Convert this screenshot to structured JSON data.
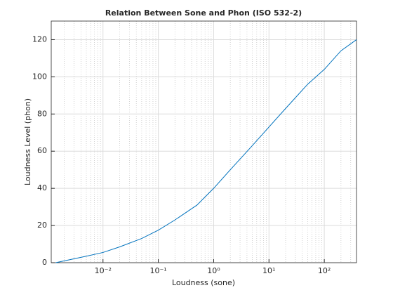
{
  "chart_data": {
    "type": "line",
    "title": "Relation Between Sone and Phon (ISO 532-2)",
    "x_label": "Loudness (sone)",
    "y_label": "Loudness Level (phon)",
    "x": [
      0.0014,
      0.002,
      0.005,
      0.01,
      0.02,
      0.05,
      0.1,
      0.2,
      0.5,
      1,
      2,
      5,
      10,
      20,
      50,
      100,
      200,
      382
    ],
    "series": [
      {
        "name": "phon",
        "color": "#0072bd",
        "values": [
          0,
          1,
          3.5,
          5.5,
          8.5,
          13,
          17.5,
          23,
          31,
          40,
          50,
          63,
          73,
          83,
          96,
          104,
          114,
          120
        ]
      }
    ],
    "xscale": "log",
    "xlim": [
      0.00116,
      382
    ],
    "ylim": [
      0,
      130
    ],
    "xticks": [
      {
        "value": 0.01,
        "label": "10⁻²"
      },
      {
        "value": 0.1,
        "label": "10⁻¹"
      },
      {
        "value": 1,
        "label": "10⁰"
      },
      {
        "value": 10,
        "label": "10¹"
      },
      {
        "value": 100,
        "label": "10²"
      }
    ],
    "yticks": [
      0,
      20,
      40,
      60,
      80,
      100,
      120
    ],
    "grid": true,
    "minor_grid": true
  }
}
